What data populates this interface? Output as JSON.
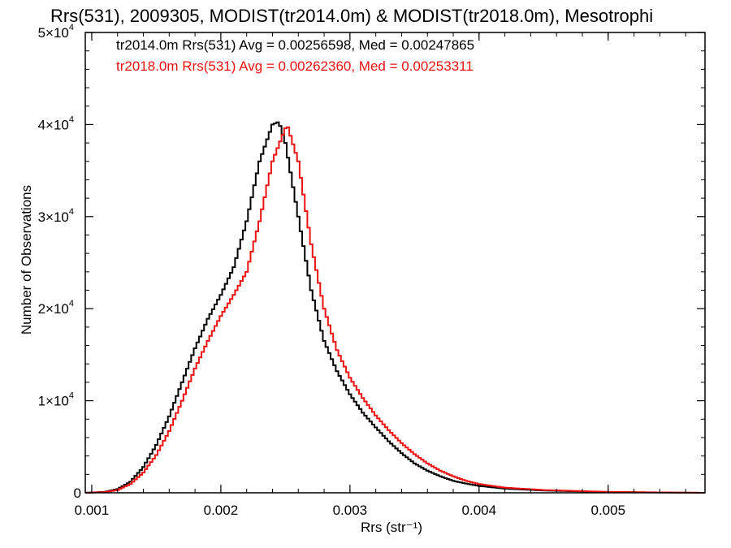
{
  "chart_data": {
    "type": "line",
    "title": "Rrs(531), 2009305, MODIST(tr2014.0m) & MODIST(tr2018.0m), Mesotrophi",
    "xlabel": "Rrs (str⁻¹)",
    "ylabel": "Number of Observations",
    "xlim": [
      0.00095,
      0.00575
    ],
    "ylim": [
      0,
      50000
    ],
    "grid": false,
    "legend_position": "top-left",
    "x_ticks": [
      {
        "value": 0.001,
        "label": "0.001"
      },
      {
        "value": 0.002,
        "label": "0.002"
      },
      {
        "value": 0.003,
        "label": "0.003"
      },
      {
        "value": 0.004,
        "label": "0.004"
      },
      {
        "value": 0.005,
        "label": "0.005"
      }
    ],
    "y_ticks": [
      {
        "value": 0,
        "label": "0",
        "exp": ""
      },
      {
        "value": 10000,
        "label": "1×10",
        "exp": "4"
      },
      {
        "value": 20000,
        "label": "2×10",
        "exp": "4"
      },
      {
        "value": 30000,
        "label": "3×10",
        "exp": "4"
      },
      {
        "value": 40000,
        "label": "4×10",
        "exp": "4"
      },
      {
        "value": 50000,
        "label": "5×10",
        "exp": "4"
      }
    ],
    "series": [
      {
        "name": "tr2014.0m Rrs(531) Avg = 0.00256598, Med = 0.00247865",
        "color": "#000000",
        "x": [
          0.00095,
          0.0011,
          0.0012,
          0.0013,
          0.0014,
          0.0015,
          0.0016,
          0.0017,
          0.0018,
          0.0019,
          0.002,
          0.0021,
          0.0022,
          0.0023,
          0.0024,
          0.00245,
          0.0025,
          0.0026,
          0.0027,
          0.0028,
          0.0029,
          0.003,
          0.0031,
          0.0032,
          0.0033,
          0.0034,
          0.0035,
          0.0036,
          0.0037,
          0.0038,
          0.0039,
          0.004,
          0.0042,
          0.0045,
          0.005,
          0.00575
        ],
        "values": [
          0,
          100,
          400,
          1200,
          2800,
          5200,
          8300,
          12000,
          15700,
          18900,
          21500,
          24500,
          29500,
          36000,
          40000,
          40300,
          38000,
          30000,
          22000,
          16500,
          13200,
          10700,
          8700,
          7100,
          5600,
          4300,
          3200,
          2400,
          1800,
          1300,
          1000,
          750,
          450,
          250,
          80,
          0
        ]
      },
      {
        "name": "tr2018.0m Rrs(531) Avg = 0.00262360, Med = 0.00253311",
        "color": "#ee1111",
        "x": [
          0.00095,
          0.0011,
          0.0012,
          0.0013,
          0.0014,
          0.0015,
          0.0016,
          0.0017,
          0.0018,
          0.0019,
          0.002,
          0.0021,
          0.0022,
          0.0023,
          0.0024,
          0.0025,
          0.00252,
          0.0026,
          0.0027,
          0.0028,
          0.0029,
          0.003,
          0.0031,
          0.0032,
          0.0033,
          0.0034,
          0.0035,
          0.0036,
          0.0037,
          0.0038,
          0.0039,
          0.004,
          0.0041,
          0.0042,
          0.0045,
          0.005,
          0.00575
        ],
        "values": [
          0,
          80,
          300,
          950,
          2200,
          4100,
          6700,
          10000,
          13500,
          16500,
          19200,
          21500,
          24000,
          29500,
          36000,
          39600,
          39700,
          36000,
          27000,
          20000,
          15500,
          12500,
          10300,
          8400,
          6800,
          5400,
          4200,
          3200,
          2400,
          1800,
          1300,
          950,
          750,
          560,
          300,
          100,
          0
        ]
      }
    ]
  }
}
